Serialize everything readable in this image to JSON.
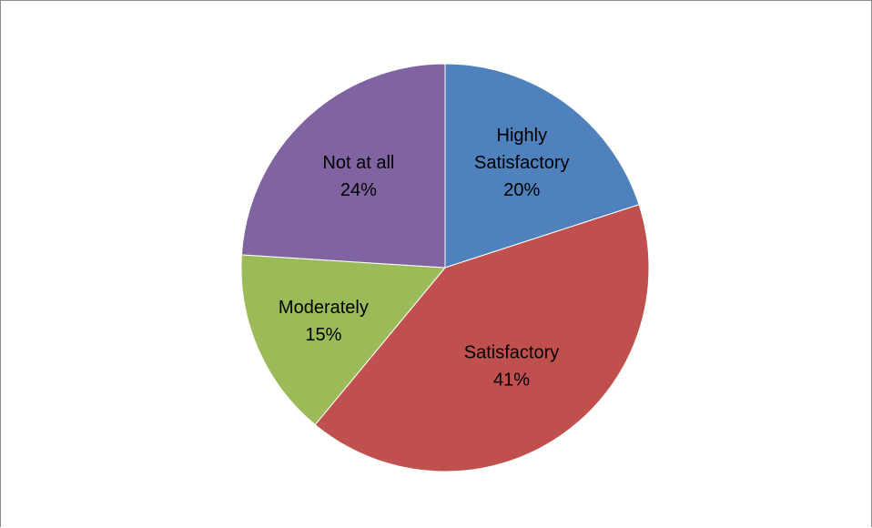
{
  "chart_data": {
    "type": "pie",
    "title": "",
    "categories": [
      "Highly Satisfactory",
      "Satisfactory",
      "Moderately",
      "Not at all"
    ],
    "values": [
      20,
      41,
      15,
      24
    ],
    "unit": "%",
    "slices": [
      {
        "label_lines": [
          "Highly",
          "Satisfactory"
        ],
        "percent_label": "20%",
        "value": 20,
        "color": "#4f81bd"
      },
      {
        "label_lines": [
          "Satisfactory"
        ],
        "percent_label": "41%",
        "value": 41,
        "color": "#c0504d"
      },
      {
        "label_lines": [
          "Moderately"
        ],
        "percent_label": "15%",
        "value": 15,
        "color": "#9bbb59"
      },
      {
        "label_lines": [
          "Not at all"
        ],
        "percent_label": "24%",
        "value": 24,
        "color": "#8064a2"
      }
    ],
    "start_angle_deg": 0,
    "direction": "clockwise",
    "legend": "none",
    "data_labels": "inside"
  }
}
